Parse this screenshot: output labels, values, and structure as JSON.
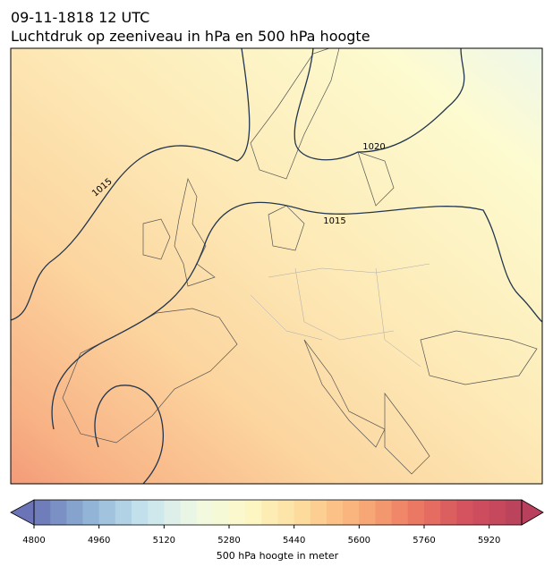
{
  "title": "09-11-1818 12 UTC",
  "subtitle": "Luchtdruk op zeeniveau in hPa en 500 hPa hoogte",
  "contour_labels": [
    1015,
    1020,
    1015
  ],
  "colorbar": {
    "label": "500 hPa hoogte in meter",
    "lim": [
      4800,
      6000
    ],
    "step": 40,
    "ticks": [
      4800,
      4960,
      5120,
      5280,
      5440,
      5600,
      5760,
      5920
    ],
    "colormap": [
      "#6b74b6",
      "#8fb2d6",
      "#c4e2ed",
      "#f1f9e4",
      "#fdf8c4",
      "#fdd99a",
      "#f9ae78",
      "#ec7a62",
      "#d4515e",
      "#b8405c"
    ]
  }
}
